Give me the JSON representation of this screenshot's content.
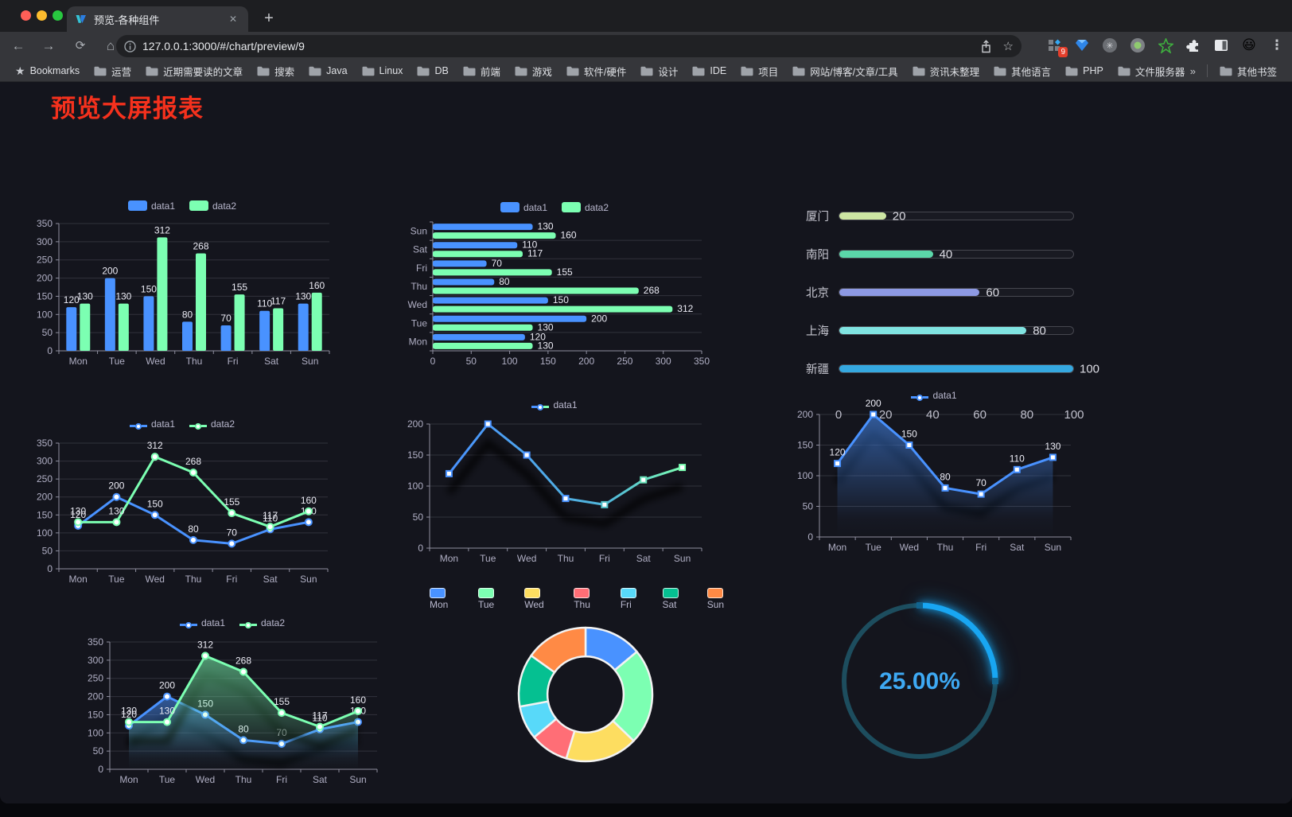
{
  "browser": {
    "tab_title": "预览-各种组件",
    "new_tab_label": "+",
    "close_tab_label": "✕",
    "url_display": "127.0.0.1:3000/#/chart/preview/9",
    "extension_badge": "9",
    "bookmarks_label": "Bookmarks",
    "bookmarks": [
      "运营",
      "近期需要读的文章",
      "搜索",
      "Java",
      "Linux",
      "DB",
      "前端",
      "游戏",
      "软件/硬件",
      "设计",
      "IDE",
      "项目",
      "网站/博客/文章/工具",
      "资讯未整理",
      "其他语言",
      "PHP",
      "文件服务器"
    ],
    "bookmarks_overflow": "»",
    "other_bookmarks": "其他书签"
  },
  "page": {
    "title": "预览大屏报表",
    "title_color": "#f5311d",
    "background": "#14151d",
    "accent_blue": "#4992ff",
    "accent_green": "#7cffb2"
  },
  "chart_data": [
    {
      "id": "bar_vertical",
      "type": "bar",
      "categories": [
        "Mon",
        "Tue",
        "Wed",
        "Thu",
        "Fri",
        "Sat",
        "Sun"
      ],
      "series": [
        {
          "name": "data1",
          "color": "#4992ff",
          "values": [
            120,
            200,
            150,
            80,
            70,
            110,
            130
          ]
        },
        {
          "name": "data2",
          "color": "#7cffb2",
          "values": [
            130,
            130,
            312,
            268,
            155,
            117,
            160
          ]
        }
      ],
      "ylim": [
        0,
        350
      ],
      "ystep": 50,
      "grid": true,
      "legend": true
    },
    {
      "id": "bar_horizontal",
      "type": "bar",
      "orientation": "horizontal",
      "categories": [
        "Mon",
        "Tue",
        "Wed",
        "Thu",
        "Fri",
        "Sat",
        "Sun"
      ],
      "display_top_to_bottom": [
        "Sun",
        "Sat",
        "Fri",
        "Thu",
        "Wed",
        "Tue",
        "Mon"
      ],
      "series": [
        {
          "name": "data1",
          "color": "#4992ff",
          "values": [
            120,
            200,
            150,
            80,
            70,
            110,
            130
          ]
        },
        {
          "name": "data2",
          "color": "#7cffb2",
          "values": [
            130,
            130,
            312,
            268,
            155,
            117,
            160
          ]
        }
      ],
      "xlim": [
        0,
        350
      ],
      "xstep": 50,
      "grid": true,
      "legend": true
    },
    {
      "id": "progress",
      "type": "bar",
      "subtype": "progress",
      "xlim": [
        0,
        100
      ],
      "xticks": [
        0,
        20,
        40,
        60,
        80,
        100
      ],
      "rows": [
        {
          "label": "厦门",
          "value": 20,
          "color": "#cde6a3"
        },
        {
          "label": "南阳",
          "value": 40,
          "color": "#5bd6a9"
        },
        {
          "label": "北京",
          "value": 60,
          "color": "#8d99e3"
        },
        {
          "label": "上海",
          "value": 80,
          "color": "#80e3e1"
        },
        {
          "label": "新疆",
          "value": 100,
          "color": "#35a8e0"
        }
      ]
    },
    {
      "id": "line_two",
      "type": "line",
      "marker": "circle",
      "labels": true,
      "categories": [
        "Mon",
        "Tue",
        "Wed",
        "Thu",
        "Fri",
        "Sat",
        "Sun"
      ],
      "series": [
        {
          "name": "data1",
          "color": "#4992ff",
          "values": [
            120,
            200,
            150,
            80,
            70,
            110,
            130
          ]
        },
        {
          "name": "data2",
          "color": "#7cffb2",
          "values": [
            130,
            130,
            312,
            268,
            155,
            117,
            160
          ]
        }
      ],
      "ylim": [
        0,
        350
      ],
      "ystep": 50,
      "grid": true,
      "legend": true
    },
    {
      "id": "line_gradient",
      "type": "line",
      "marker": "square",
      "labels": false,
      "shadow": true,
      "categories": [
        "Mon",
        "Tue",
        "Wed",
        "Thu",
        "Fri",
        "Sat",
        "Sun"
      ],
      "series": [
        {
          "name": "data1",
          "color": "#4992ff",
          "gradient": [
            "#4992ff",
            "#52b9d8",
            "#7cffb2"
          ],
          "marker_colors": [
            "#4992ff",
            "#4992ff",
            "#4992ff",
            "#4992ff",
            "#54c1c8",
            "#66e0b8",
            "#7cffb2"
          ],
          "values": [
            120,
            200,
            150,
            80,
            70,
            110,
            130
          ]
        }
      ],
      "ylim": [
        0,
        200
      ],
      "ystep": 50,
      "grid": true,
      "legend": true
    },
    {
      "id": "line_area",
      "type": "line",
      "marker": "square",
      "labels": true,
      "shadow": true,
      "categories": [
        "Mon",
        "Tue",
        "Wed",
        "Thu",
        "Fri",
        "Sat",
        "Sun"
      ],
      "series": [
        {
          "name": "data1",
          "color": "#4992ff",
          "area": true,
          "values": [
            120,
            200,
            150,
            80,
            70,
            110,
            130
          ]
        }
      ],
      "ylim": [
        0,
        200
      ],
      "ystep": 50,
      "grid": true,
      "legend": true
    },
    {
      "id": "area_two",
      "type": "line",
      "marker": "circle",
      "labels": true,
      "shadow": true,
      "categories": [
        "Mon",
        "Tue",
        "Wed",
        "Thu",
        "Fri",
        "Sat",
        "Sun"
      ],
      "series": [
        {
          "name": "data1",
          "color": "#4992ff",
          "area": true,
          "values": [
            120,
            200,
            150,
            80,
            70,
            110,
            130
          ]
        },
        {
          "name": "data2",
          "color": "#7cffb2",
          "area": true,
          "values": [
            130,
            130,
            312,
            268,
            155,
            117,
            160
          ]
        }
      ],
      "ylim": [
        0,
        350
      ],
      "ystep": 50,
      "grid": true,
      "legend": true
    },
    {
      "id": "donut",
      "type": "pie",
      "categories": [
        "Mon",
        "Tue",
        "Wed",
        "Thu",
        "Fri",
        "Sat",
        "Sun"
      ],
      "values": [
        120,
        200,
        150,
        80,
        70,
        110,
        130
      ],
      "colors": [
        "#4992ff",
        "#7cffb2",
        "#fddd60",
        "#ff6e76",
        "#58d9f9",
        "#05c091",
        "#ff8a45"
      ],
      "inner_radius_ratio": 0.57,
      "legend_position": "top"
    },
    {
      "id": "gauge",
      "type": "gauge",
      "value": 25,
      "label": "25.00%",
      "color": "#18a6f2",
      "track_color": "#1d4d5e",
      "text_color": "#3ea9f3"
    }
  ]
}
